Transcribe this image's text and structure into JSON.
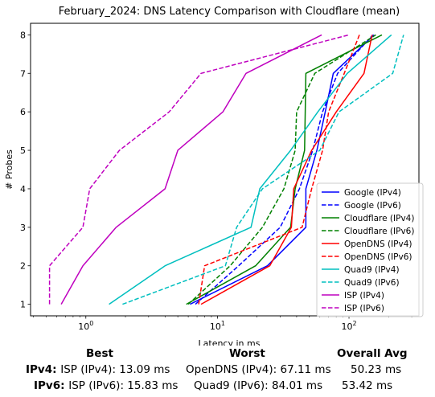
{
  "chart_data": {
    "type": "line",
    "title": "February_2024: DNS Latency Comparison with Cloudflare (mean)",
    "xlabel": "Latency in ms",
    "ylabel": "# Probes",
    "xscale": "log",
    "xlim": [
      0.38,
      340
    ],
    "ylim": [
      0.7,
      8.3
    ],
    "x_ticks": [
      1,
      10,
      100
    ],
    "x_tick_labels": [
      "10^0",
      "10^1",
      "10^2"
    ],
    "y_ticks": [
      1,
      2,
      3,
      4,
      5,
      6,
      7,
      8
    ],
    "y_tick_labels": [
      "1",
      "2",
      "3",
      "4",
      "5",
      "6",
      "7",
      "8"
    ],
    "grid": false,
    "legend_position": "lower-right",
    "series": [
      {
        "name": "Google (IPv4)",
        "color": "#0000ff",
        "dash": "solid",
        "x": [
          6.2,
          24.0,
          47.0,
          47.0,
          57.0,
          66.0,
          76.0,
          155.0
        ],
        "y": [
          1,
          2,
          3,
          4,
          5,
          6,
          7,
          8
        ]
      },
      {
        "name": "Google (IPv6)",
        "color": "#0000ff",
        "dash": "dashed",
        "x": [
          6.8,
          14.5,
          30.0,
          42.0,
          53.0,
          63.0,
          82.0,
          152.0
        ],
        "y": [
          1,
          2,
          3,
          4,
          5,
          6,
          7,
          8
        ]
      },
      {
        "name": "Cloudflare (IPv4)",
        "color": "#008000",
        "dash": "solid",
        "x": [
          5.8,
          19.5,
          36.0,
          39.0,
          46.0,
          46.5,
          47.0,
          178.0
        ],
        "y": [
          1,
          2,
          3,
          4,
          5,
          6,
          7,
          8
        ]
      },
      {
        "name": "Cloudflare (IPv6)",
        "color": "#008000",
        "dash": "dashed",
        "x": [
          6.0,
          12.5,
          22.0,
          32.0,
          39.0,
          40.0,
          55.0,
          160.0
        ],
        "y": [
          1,
          2,
          3,
          4,
          5,
          6,
          7,
          8
        ]
      },
      {
        "name": "OpenDNS (IPv4)",
        "color": "#ff0000",
        "dash": "solid",
        "x": [
          7.5,
          25.0,
          36.5,
          38.0,
          52.0,
          80.0,
          130.0,
          150.0
        ],
        "y": [
          1,
          2,
          3,
          4,
          5,
          6,
          7,
          8
        ]
      },
      {
        "name": "OpenDNS (IPv6)",
        "color": "#ff0000",
        "dash": "dashed",
        "x": [
          7.2,
          8.0,
          44.0,
          52.0,
          63.0,
          70.0,
          92.0,
          120.0
        ],
        "y": [
          1,
          2,
          3,
          4,
          5,
          6,
          7,
          8
        ]
      },
      {
        "name": "Quad9 (IPv4)",
        "color": "#00bfbf",
        "dash": "solid",
        "x": [
          1.5,
          4.0,
          18.0,
          21.0,
          36.0,
          58.0,
          97.0,
          210.0
        ],
        "y": [
          1,
          2,
          3,
          4,
          5,
          6,
          7,
          8
        ]
      },
      {
        "name": "Quad9 (IPv6)",
        "color": "#00bfbf",
        "dash": "dashed",
        "x": [
          1.9,
          11.5,
          14.0,
          22.0,
          60.0,
          84.0,
          215.0,
          260.0
        ],
        "y": [
          1,
          2,
          3,
          4,
          5,
          6,
          7,
          8
        ]
      },
      {
        "name": "ISP (IPv4)",
        "color": "#bf00bf",
        "dash": "solid",
        "x": [
          0.65,
          0.95,
          1.7,
          4.0,
          5.0,
          11.0,
          16.5,
          62.0
        ],
        "y": [
          1,
          2,
          3,
          4,
          5,
          6,
          7,
          8
        ]
      },
      {
        "name": "ISP (IPv6)",
        "color": "#bf00bf",
        "dash": "dashed",
        "x": [
          0.53,
          0.53,
          0.95,
          1.07,
          1.8,
          4.3,
          7.5,
          100.0
        ],
        "y": [
          1,
          2,
          3,
          4,
          5,
          6,
          7,
          8
        ]
      }
    ]
  },
  "summary": {
    "headers": {
      "best": "Best",
      "worst": "Worst",
      "avg": "Overall Avg"
    },
    "rows": [
      {
        "label": "IPv4",
        "best": "ISP (IPv4): 13.09 ms",
        "worst": "OpenDNS (IPv4): 67.11 ms",
        "avg": "50.23 ms"
      },
      {
        "label": "IPv6",
        "best": "ISP (IPv6): 15.83 ms",
        "worst": "Quad9 (IPv6): 84.01 ms",
        "avg": "53.42 ms"
      }
    ]
  }
}
